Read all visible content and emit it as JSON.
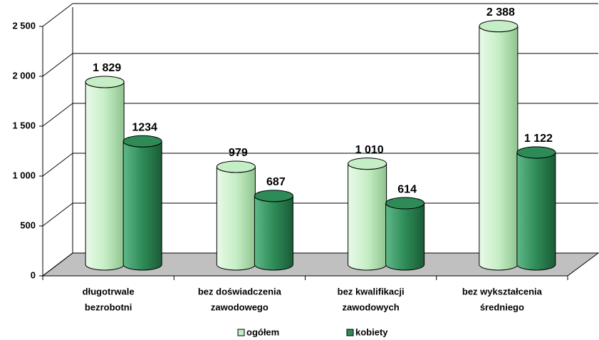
{
  "chart_data": {
    "type": "bar3d",
    "categories": [
      [
        "długotrwale",
        "bezrobotni"
      ],
      [
        "bez doświadczenia",
        "zawodowego"
      ],
      [
        "bez kwalifikacji",
        "zawodowych"
      ],
      [
        "bez wykształcenia",
        "średniego"
      ]
    ],
    "series": [
      {
        "name": "ogółem",
        "color": "#c6eec6",
        "values": [
          1829,
          979,
          1010,
          2388
        ],
        "value_labels": [
          "1 829",
          "979",
          "1 010",
          "2 388"
        ]
      },
      {
        "name": "kobiety",
        "color": "#2e8b57",
        "values": [
          1234,
          687,
          614,
          1122
        ],
        "value_labels": [
          "1234",
          "687",
          "614",
          "1 122"
        ]
      }
    ],
    "ylim": [
      0,
      2500
    ],
    "yticks": [
      0,
      500,
      {
        "value": 1000,
        "label": "1 000"
      },
      {
        "value": 1500,
        "label": "1 500"
      },
      {
        "value": 2000,
        "label": "2 000"
      },
      {
        "value": 2500,
        "label": "2 500"
      }
    ],
    "grid": true,
    "legend": "bottom"
  }
}
